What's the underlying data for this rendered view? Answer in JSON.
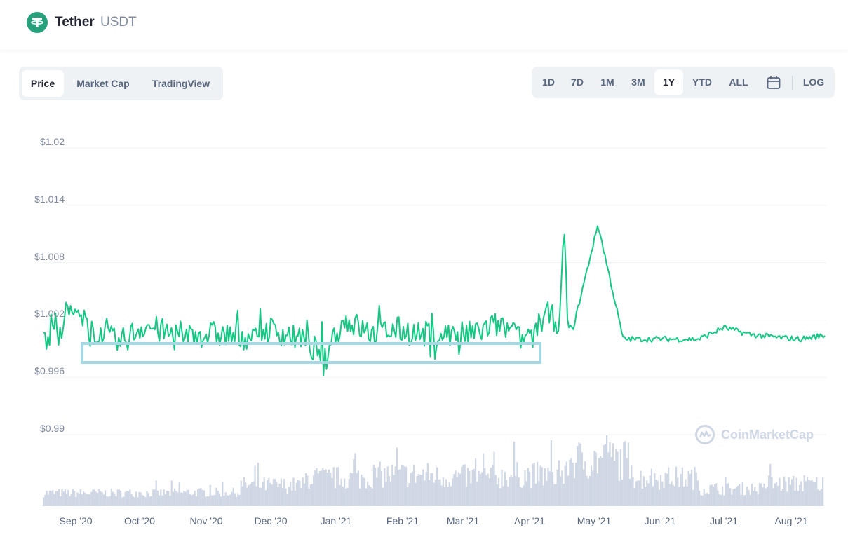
{
  "coin": {
    "name": "Tether",
    "symbol": "USDT"
  },
  "tabs": [
    "Price",
    "Market Cap",
    "TradingView"
  ],
  "ranges": [
    "1D",
    "7D",
    "1M",
    "3M",
    "1Y",
    "YTD",
    "ALL"
  ],
  "log_label": "LOG",
  "watermark": "CoinMarketCap",
  "colors": {
    "line": "#16c784",
    "volume": "#cfd6e4",
    "highlight": "#a5d8e3",
    "logo": "#26a17b"
  },
  "chart_data": {
    "type": "line",
    "y_tick_labels": [
      "$1.02",
      "$1.014",
      "$1.008",
      "$1.002",
      "$0.996",
      "$0.99"
    ],
    "y_ticks": [
      1.02,
      1.014,
      1.008,
      1.002,
      0.996,
      0.99
    ],
    "ylim": [
      0.99,
      1.02
    ],
    "x_tick_labels": [
      "Sep '20",
      "Oct '20",
      "Nov '20",
      "Dec '20",
      "Jan '21",
      "Feb '21",
      "Mar '21",
      "Apr '21",
      "May '21",
      "Jun '21",
      "Jul '21",
      "Aug '21"
    ],
    "series": [
      {
        "x": [
          "Aug '20",
          "Sep '20",
          "Sep '20",
          "Sep '20",
          "Oct '20",
          "Oct '20",
          "Nov '20",
          "Nov '20",
          "Dec '20",
          "Dec '20",
          "Dec '20",
          "Jan '21",
          "Jan '21",
          "Jan '21",
          "Feb '21",
          "Feb '21",
          "Mar '21",
          "Mar '21",
          "Mar '21",
          "Apr '21",
          "Apr '21",
          "Apr '21",
          "Apr '21",
          "Apr '21",
          "May '21",
          "May '21",
          "May '21",
          "Jun '21",
          "Jun '21",
          "Jul '21",
          "Jul '21",
          "Aug '21"
        ],
        "y": [
          1.0,
          1.003,
          1.001,
          0.9995,
          1.0015,
          1.0005,
          1.0005,
          1.0005,
          1.0002,
          1.001,
          1.0002,
          0.9985,
          1.002,
          1.0005,
          1.001,
          1.0005,
          1.0005,
          1.0005,
          1.0015,
          1.0,
          1.0025,
          1.001,
          1.012,
          1.0,
          1.0,
          1.0,
          1.0,
          1.0012,
          1.0005,
          1.0002,
          1.0,
          1.0004
        ]
      }
    ],
    "volume_series": [
      {
        "x": [
          "Sep '20",
          "Oct '20",
          "Nov '20",
          "Dec '20",
          "Jan '21",
          "Feb '21",
          "Mar '21",
          "Apr '21",
          "May '21",
          "Jun '21",
          "Jul '21",
          "Aug '21"
        ],
        "relative_volume": [
          0.15,
          0.15,
          0.16,
          0.28,
          0.4,
          0.45,
          0.42,
          0.45,
          0.7,
          0.4,
          0.22,
          0.3
        ]
      }
    ]
  }
}
